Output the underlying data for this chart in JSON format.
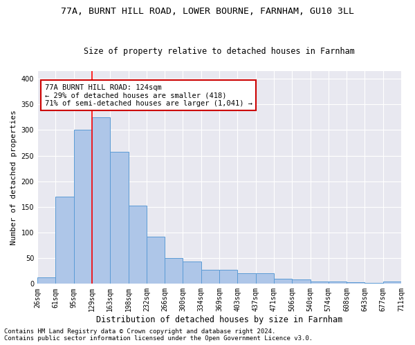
{
  "title_line1": "77A, BURNT HILL ROAD, LOWER BOURNE, FARNHAM, GU10 3LL",
  "title_line2": "Size of property relative to detached houses in Farnham",
  "xlabel": "Distribution of detached houses by size in Farnham",
  "ylabel": "Number of detached properties",
  "footer_line1": "Contains HM Land Registry data © Crown copyright and database right 2024.",
  "footer_line2": "Contains public sector information licensed under the Open Government Licence v3.0.",
  "bar_values": [
    12,
    170,
    300,
    325,
    258,
    153,
    92,
    50,
    43,
    28,
    27,
    20,
    20,
    10,
    9,
    5,
    5,
    3,
    2,
    4
  ],
  "x_labels": [
    "26sqm",
    "61sqm",
    "95sqm",
    "129sqm",
    "163sqm",
    "198sqm",
    "232sqm",
    "266sqm",
    "300sqm",
    "334sqm",
    "369sqm",
    "403sqm",
    "437sqm",
    "471sqm",
    "506sqm",
    "540sqm",
    "574sqm",
    "608sqm",
    "643sqm",
    "677sqm",
    "711sqm"
  ],
  "bar_color": "#aec6e8",
  "bar_edge_color": "#5b9bd5",
  "annotation_text": "77A BURNT HILL ROAD: 124sqm\n← 29% of detached houses are smaller (418)\n71% of semi-detached houses are larger (1,041) →",
  "annotation_box_color": "#ffffff",
  "annotation_box_edge_color": "#cc0000",
  "ylim": [
    0,
    415
  ],
  "yticks": [
    0,
    50,
    100,
    150,
    200,
    250,
    300,
    350,
    400
  ],
  "bg_color": "#e8e8f0",
  "grid_color": "#ffffff",
  "title_fontsize": 9.5,
  "subtitle_fontsize": 8.5,
  "axis_label_fontsize": 8,
  "tick_fontsize": 7,
  "annotation_fontsize": 7.5,
  "footer_fontsize": 6.5
}
